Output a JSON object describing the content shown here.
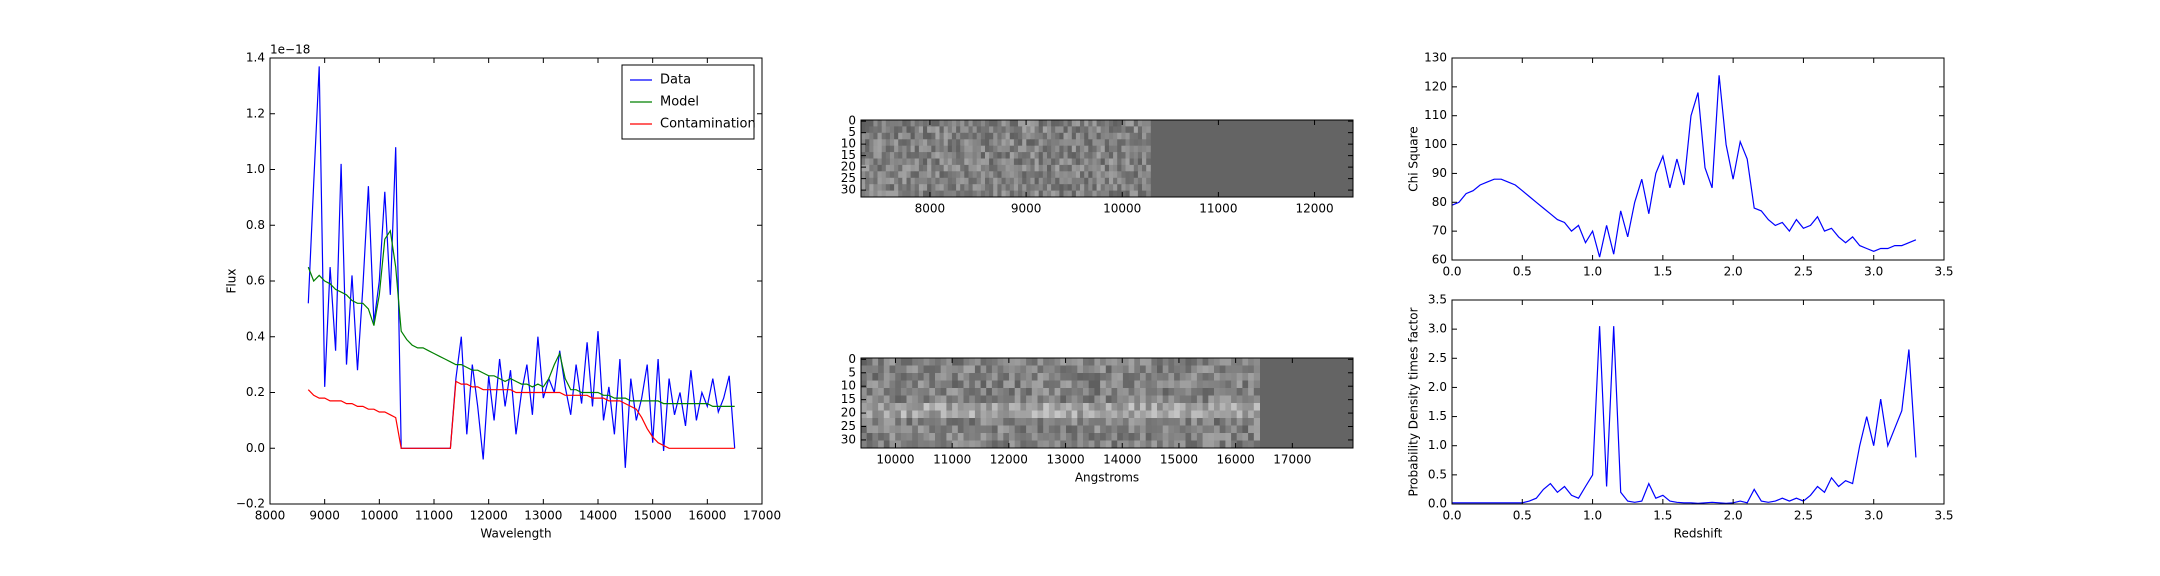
{
  "chart_data": [
    {
      "type": "line",
      "xlabel": "Wavelength",
      "ylabel": "Flux",
      "offset_label": "1e−18",
      "legend": "upper right",
      "xlim": [
        8000,
        17000
      ],
      "ylim": [
        -0.2,
        1.4
      ],
      "xticks": [
        8000,
        9000,
        10000,
        11000,
        12000,
        13000,
        14000,
        15000,
        16000,
        17000
      ],
      "yticks": [
        {
          "value": -0.2,
          "label": "−0.2"
        },
        {
          "value": 0,
          "label": "0.0"
        },
        0.2,
        0.4,
        0.6,
        0.8,
        {
          "value": 1,
          "label": "1.0"
        },
        1.2,
        1.4
      ],
      "x": [
        8700,
        8800,
        8900,
        9000,
        9100,
        9200,
        9300,
        9400,
        9500,
        9600,
        9700,
        9800,
        9900,
        10000,
        10100,
        10200,
        10300,
        10400,
        10500,
        10600,
        10700,
        10800,
        10900,
        11000,
        11100,
        11200,
        11300,
        11400,
        11500,
        11600,
        11700,
        11800,
        11900,
        12000,
        12100,
        12200,
        12300,
        12400,
        12500,
        12600,
        12700,
        12800,
        12900,
        13000,
        13100,
        13200,
        13300,
        13400,
        13500,
        13600,
        13700,
        13800,
        13900,
        14000,
        14100,
        14200,
        14300,
        14400,
        14500,
        14600,
        14700,
        14800,
        14900,
        15000,
        15100,
        15200,
        15300,
        15400,
        15500,
        15600,
        15700,
        15800,
        15900,
        16000,
        16100,
        16200,
        16300,
        16400,
        16500
      ],
      "series": [
        {
          "name": "Data",
          "color": "#0000ff",
          "values": [
            0.52,
            0.95,
            1.37,
            0.22,
            0.65,
            0.35,
            1.02,
            0.3,
            0.62,
            0.28,
            0.58,
            0.94,
            0.45,
            0.6,
            0.92,
            0.55,
            1.08,
            0,
            0,
            0,
            0,
            0,
            0,
            0,
            0,
            0,
            0,
            0.25,
            0.4,
            0.05,
            0.3,
            0.15,
            -0.04,
            0.26,
            0.1,
            0.32,
            0.15,
            0.28,
            0.05,
            0.2,
            0.3,
            0.12,
            0.4,
            0.18,
            0.25,
            0.2,
            0.35,
            0.22,
            0.12,
            0.3,
            0.16,
            0.38,
            0.15,
            0.42,
            0.1,
            0.22,
            0.05,
            0.32,
            -0.07,
            0.25,
            0.1,
            0.18,
            0.3,
            0.02,
            0.32,
            -0.01,
            0.25,
            0.12,
            0.2,
            0.08,
            0.28,
            0.1,
            0.2,
            0.15,
            0.25,
            0.13,
            0.18,
            0.26,
            0
          ]
        },
        {
          "name": "Model",
          "color": "#008000",
          "values": [
            0.65,
            0.6,
            0.62,
            0.6,
            0.59,
            0.57,
            0.56,
            0.55,
            0.53,
            0.52,
            0.52,
            0.5,
            0.44,
            0.55,
            0.75,
            0.78,
            0.65,
            0.42,
            0.39,
            0.37,
            0.36,
            0.36,
            0.35,
            0.34,
            0.33,
            0.32,
            0.31,
            0.3,
            0.3,
            0.29,
            0.28,
            0.28,
            0.27,
            0.26,
            0.26,
            0.25,
            0.24,
            0.25,
            0.24,
            0.23,
            0.23,
            0.22,
            0.23,
            0.22,
            0.25,
            0.3,
            0.34,
            0.25,
            0.21,
            0.21,
            0.2,
            0.2,
            0.2,
            0.2,
            0.19,
            0.19,
            0.18,
            0.18,
            0.18,
            0.17,
            0.17,
            0.17,
            0.17,
            0.17,
            0.17,
            0.16,
            0.16,
            0.16,
            0.16,
            0.16,
            0.16,
            0.16,
            0.16,
            0.16,
            0.15,
            0.15,
            0.15,
            0.15,
            0.15
          ]
        },
        {
          "name": "Contamination",
          "color": "#ff0000",
          "values": [
            0.21,
            0.19,
            0.18,
            0.18,
            0.17,
            0.17,
            0.17,
            0.16,
            0.16,
            0.15,
            0.15,
            0.14,
            0.14,
            0.13,
            0.13,
            0.12,
            0.11,
            0,
            0,
            0,
            0,
            0,
            0,
            0,
            0,
            0,
            0,
            0.24,
            0.23,
            0.23,
            0.22,
            0.22,
            0.21,
            0.21,
            0.21,
            0.21,
            0.21,
            0.21,
            0.2,
            0.2,
            0.2,
            0.2,
            0.2,
            0.2,
            0.2,
            0.2,
            0.2,
            0.19,
            0.19,
            0.19,
            0.19,
            0.19,
            0.18,
            0.18,
            0.18,
            0.17,
            0.17,
            0.17,
            0.16,
            0.15,
            0.14,
            0.11,
            0.07,
            0.04,
            0.02,
            0.01,
            0,
            0,
            0,
            0,
            0,
            0,
            0,
            0,
            0,
            0,
            0,
            0,
            0
          ]
        }
      ]
    },
    {
      "type": "image",
      "xlim": [
        7283,
        12400
      ],
      "ylim": [
        33,
        -0.5
      ],
      "xticks": [
        8000,
        9000,
        10000,
        11000,
        12000
      ],
      "yticks": [
        0,
        5,
        10,
        15,
        20,
        25,
        30
      ]
    },
    {
      "type": "image",
      "xlabel": "Angstroms",
      "xlim": [
        9392,
        18070
      ],
      "ylim": [
        33,
        -0.5
      ],
      "xticks": [
        10000,
        11000,
        12000,
        13000,
        14000,
        15000,
        16000,
        17000
      ],
      "yticks": [
        0,
        5,
        10,
        15,
        20,
        25,
        30
      ]
    },
    {
      "type": "line",
      "ylabel": "Chi Square",
      "xlim": [
        0,
        3.5
      ],
      "ylim": [
        60,
        130
      ],
      "xticks": [
        {
          "value": 0,
          "label": "0.0"
        },
        0.5,
        {
          "value": 1,
          "label": "1.0"
        },
        1.5,
        {
          "value": 2,
          "label": "2.0"
        },
        2.5,
        {
          "value": 3,
          "label": "3.0"
        },
        3.5
      ],
      "yticks": [
        60,
        70,
        80,
        90,
        100,
        110,
        120,
        130
      ],
      "x": [
        0,
        0.05,
        0.1,
        0.15,
        0.2,
        0.25,
        0.3,
        0.35,
        0.4,
        0.45,
        0.5,
        0.55,
        0.6,
        0.65,
        0.7,
        0.75,
        0.8,
        0.85,
        0.9,
        0.95,
        1,
        1.05,
        1.1,
        1.15,
        1.2,
        1.25,
        1.3,
        1.35,
        1.4,
        1.45,
        1.5,
        1.55,
        1.6,
        1.65,
        1.7,
        1.75,
        1.8,
        1.85,
        1.9,
        1.95,
        2,
        2.05,
        2.1,
        2.15,
        2.2,
        2.25,
        2.3,
        2.35,
        2.4,
        2.45,
        2.5,
        2.55,
        2.6,
        2.65,
        2.7,
        2.75,
        2.8,
        2.85,
        2.9,
        2.95,
        3,
        3.05,
        3.1,
        3.15,
        3.2,
        3.25,
        3.3
      ],
      "series": [
        {
          "color": "#0000ff",
          "values": [
            79,
            80,
            83,
            84,
            86,
            87,
            88,
            88,
            87,
            86,
            84,
            82,
            80,
            78,
            76,
            74,
            73,
            70,
            72,
            66,
            70,
            61,
            72,
            62,
            77,
            68,
            80,
            88,
            76,
            90,
            96,
            85,
            95,
            86,
            110,
            118,
            92,
            85,
            124,
            100,
            88,
            101,
            95,
            78,
            77,
            74,
            72,
            73,
            70,
            74,
            71,
            72,
            75,
            70,
            71,
            68,
            66,
            68,
            65,
            64,
            63,
            64,
            64,
            65,
            65,
            66,
            67
          ]
        }
      ]
    },
    {
      "type": "line",
      "xlabel": "Redshift",
      "ylabel": "Probability Density times factor",
      "xlim": [
        0,
        3.5
      ],
      "ylim": [
        0,
        3.5
      ],
      "xticks": [
        {
          "value": 0,
          "label": "0.0"
        },
        0.5,
        {
          "value": 1,
          "label": "1.0"
        },
        1.5,
        {
          "value": 2,
          "label": "2.0"
        },
        2.5,
        {
          "value": 3,
          "label": "3.0"
        },
        3.5
      ],
      "yticks": [
        {
          "value": 0,
          "label": "0.0"
        },
        0.5,
        {
          "value": 1,
          "label": "1.0"
        },
        1.5,
        {
          "value": 2,
          "label": "2.0"
        },
        2.5,
        {
          "value": 3,
          "label": "3.0"
        },
        3.5
      ],
      "x": [
        0,
        0.05,
        0.1,
        0.15,
        0.2,
        0.25,
        0.3,
        0.35,
        0.4,
        0.45,
        0.5,
        0.55,
        0.6,
        0.65,
        0.7,
        0.75,
        0.8,
        0.85,
        0.9,
        0.95,
        1,
        1.05,
        1.1,
        1.15,
        1.2,
        1.25,
        1.3,
        1.35,
        1.4,
        1.45,
        1.5,
        1.55,
        1.6,
        1.65,
        1.7,
        1.75,
        1.8,
        1.85,
        1.9,
        1.95,
        2,
        2.05,
        2.1,
        2.15,
        2.2,
        2.25,
        2.3,
        2.35,
        2.4,
        2.45,
        2.5,
        2.55,
        2.6,
        2.65,
        2.7,
        2.75,
        2.8,
        2.85,
        2.9,
        2.95,
        3,
        3.05,
        3.1,
        3.15,
        3.2,
        3.25,
        3.3
      ],
      "series": [
        {
          "color": "#0000ff",
          "values": [
            0.02,
            0.02,
            0.02,
            0.02,
            0.02,
            0.02,
            0.02,
            0.02,
            0.02,
            0.02,
            0.02,
            0.05,
            0.1,
            0.25,
            0.35,
            0.2,
            0.3,
            0.15,
            0.1,
            0.3,
            0.5,
            3.05,
            0.3,
            3.05,
            0.2,
            0.05,
            0.03,
            0.05,
            0.35,
            0.1,
            0.15,
            0.05,
            0.03,
            0.02,
            0.02,
            0.01,
            0.02,
            0.03,
            0.02,
            0.01,
            0.02,
            0.05,
            0.02,
            0.25,
            0.05,
            0.03,
            0.05,
            0.1,
            0.05,
            0.1,
            0.05,
            0.15,
            0.3,
            0.2,
            0.45,
            0.3,
            0.4,
            0.35,
            1,
            1.5,
            1,
            1.8,
            1,
            1.3,
            1.6,
            2.65,
            0.8
          ]
        }
      ]
    }
  ]
}
